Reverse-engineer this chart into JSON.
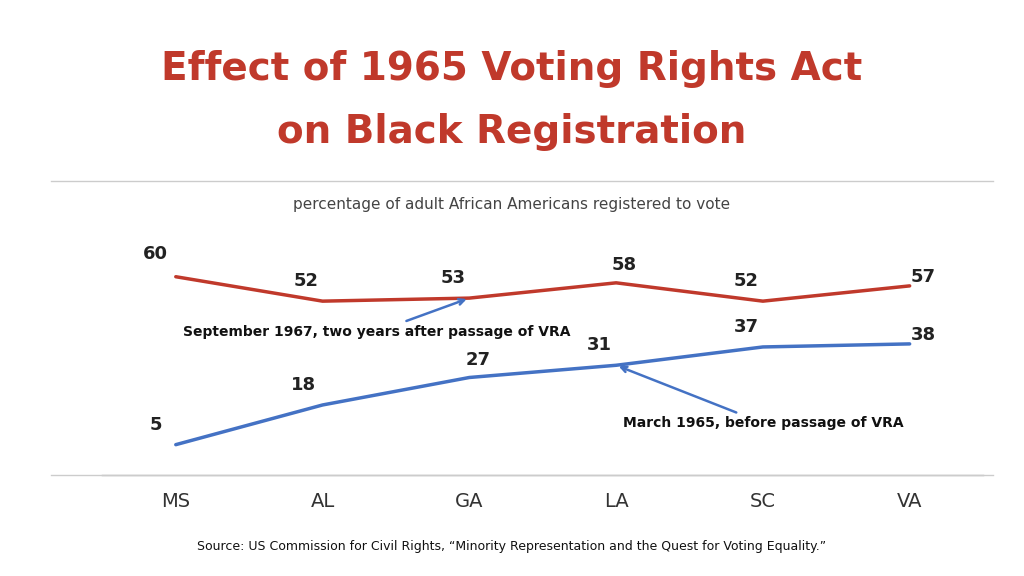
{
  "title_line1": "Effect of 1965 Voting Rights Act",
  "title_line2": "on Black Registration",
  "subtitle": "percentage of adult African Americans registered to vote",
  "categories": [
    "MS",
    "AL",
    "GA",
    "LA",
    "SC",
    "VA"
  ],
  "before_values": [
    5,
    18,
    27,
    31,
    37,
    38
  ],
  "after_values": [
    60,
    52,
    53,
    58,
    52,
    57
  ],
  "before_color": "#4472C4",
  "after_color": "#C0392B",
  "title_color": "#C0392B",
  "subtitle_color": "#444444",
  "annotation_before": "March 1965, before passage of VRA",
  "annotation_after": "September 1967, two years after passage of VRA",
  "footer_text": "Source: US Commission for Civil Rights, “Minority Representation and the Quest for Voting Equality.”",
  "footer_bg": "#A0483A",
  "footer_blue_bar": "#4472C4",
  "bg_color": "#FFFFFF",
  "ylim": [
    -5,
    78
  ],
  "line_width": 2.5,
  "separator_color": "#CCCCCC"
}
